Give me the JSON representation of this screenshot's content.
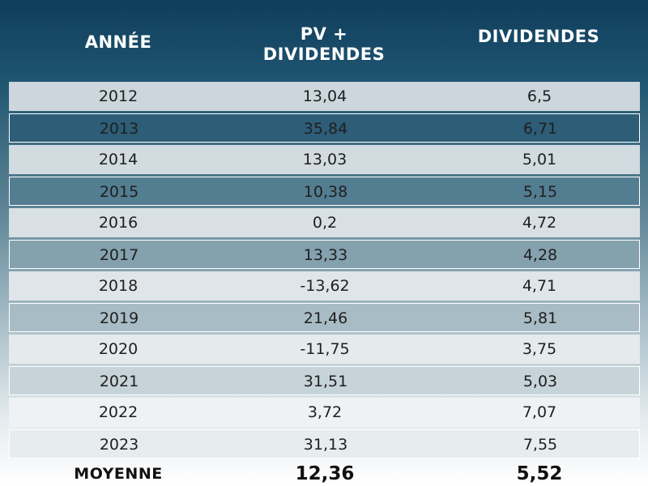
{
  "chart_data": {
    "type": "table",
    "columns": [
      "ANNÉE",
      "PV + DIVIDENDES",
      "DIVIDENDES"
    ],
    "header": {
      "year": "ANNÉE",
      "pv_line1": "PV +",
      "pv_line2": "DIVIDENDES",
      "div": "DIVIDENDES"
    },
    "rows": [
      {
        "year": "2012",
        "pv": "13,04",
        "div": "6,5",
        "fill": "#ccd6dc"
      },
      {
        "year": "2013",
        "pv": "35,84",
        "div": "6,71",
        "fill": "#2d5d77"
      },
      {
        "year": "2014",
        "pv": "13,03",
        "div": "5,01",
        "fill": "#d2dbe0"
      },
      {
        "year": "2015",
        "pv": "10,38",
        "div": "5,15",
        "fill": "#537d91"
      },
      {
        "year": "2016",
        "pv": "0,2",
        "div": "4,72",
        "fill": "#d9e0e4"
      },
      {
        "year": "2017",
        "pv": "13,33",
        "div": "4,28",
        "fill": "#84a1ae"
      },
      {
        "year": "2018",
        "pv": "-13,62",
        "div": "4,71",
        "fill": "#dfe5e8"
      },
      {
        "year": "2019",
        "pv": "21,46",
        "div": "5,81",
        "fill": "#a8bcc5"
      },
      {
        "year": "2020",
        "pv": "-11,75",
        "div": "3,75",
        "fill": "#e5eaec"
      },
      {
        "year": "2021",
        "pv": "31,51",
        "div": "5,03",
        "fill": "#c6d3d9"
      },
      {
        "year": "2022",
        "pv": "3,72",
        "div": "7,07",
        "fill": "#eff2f4"
      },
      {
        "year": "2023",
        "pv": "31,13",
        "div": "7,55",
        "fill": "#e7ecef"
      }
    ],
    "average": {
      "label": "MOYENNE",
      "pv": "12,36",
      "div": "5,52"
    }
  }
}
